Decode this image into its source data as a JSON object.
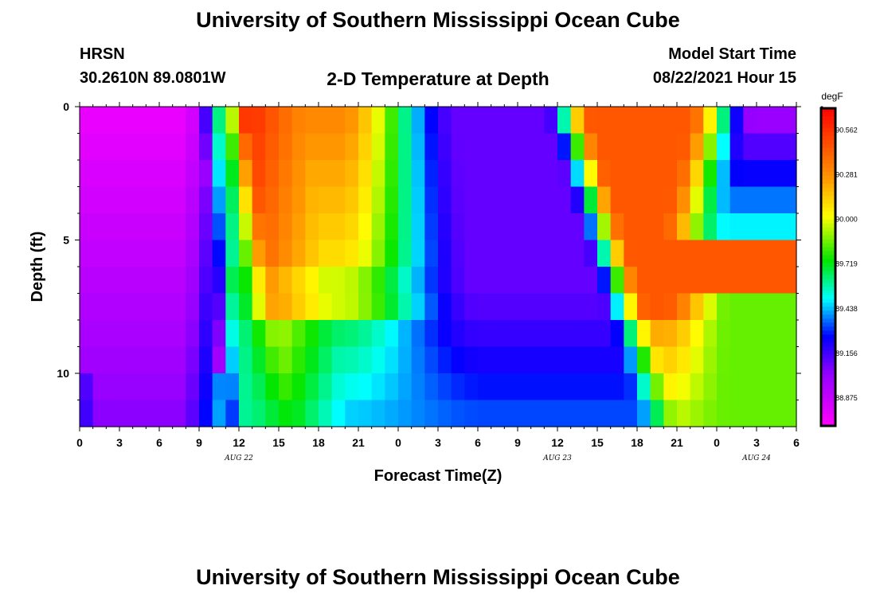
{
  "page": {
    "title_top": "University of Southern Mississippi Ocean Cube",
    "title_bottom": "University of Southern Mississippi Ocean Cube",
    "station": "HRSN",
    "coordinates": "30.2610N  89.0801W",
    "plot_title": "2-D Temperature at Depth",
    "model_label": "Model Start Time",
    "model_time": "08/22/2021 Hour 15"
  },
  "chart_data": {
    "type": "heatmap",
    "title": "2-D Temperature at Depth",
    "xlabel": "Forecast Time(Z)",
    "ylabel": "Depth (ft)",
    "units": "degF",
    "x_hours_range": [
      0,
      54
    ],
    "y_depth_range_ft": [
      0,
      12
    ],
    "x_tick_labels": [
      "0",
      "3",
      "6",
      "9",
      "12",
      "15",
      "18",
      "21",
      "0",
      "3",
      "6",
      "9",
      "12",
      "15",
      "18",
      "21",
      "0",
      "3",
      "6"
    ],
    "y_ticks": [
      0,
      5,
      10
    ],
    "y_tick_labels": [
      "0",
      "5",
      "10"
    ],
    "date_labels": [
      {
        "hour": 12,
        "label": "AUG 22"
      },
      {
        "hour": 36,
        "label": "AUG 23"
      },
      {
        "hour": 51,
        "label": "AUG 24"
      }
    ],
    "colorbar": {
      "unit_label": "degF",
      "min": 88.7,
      "max": 90.7,
      "tick_values": [
        90.562,
        90.281,
        90.0,
        89.719,
        89.438,
        89.156,
        88.875
      ],
      "tick_labels": [
        "90.562",
        "90.281",
        "90.000",
        "89.719",
        "89.438",
        "89.156",
        "88.875"
      ]
    },
    "depth_levels_ft": [
      0.5,
      1.5,
      2.5,
      3.5,
      4.5,
      5.5,
      6.5,
      7.5,
      8.5,
      9.5,
      10.5,
      11.5
    ],
    "hours": [
      0,
      1,
      2,
      3,
      4,
      5,
      6,
      7,
      8,
      9,
      10,
      11,
      12,
      13,
      14,
      15,
      16,
      17,
      18,
      19,
      20,
      21,
      22,
      23,
      24,
      25,
      26,
      27,
      28,
      29,
      30,
      31,
      32,
      33,
      34,
      35,
      36,
      37,
      38,
      39,
      40,
      41,
      42,
      43,
      44,
      45,
      46,
      47,
      48,
      49,
      50,
      51,
      52,
      53
    ],
    "features": [
      {
        "name": "cool-surface-morning",
        "hours": [
          0,
          9
        ],
        "temp_degF": 88.75
      },
      {
        "name": "warm-surface-afternoon",
        "hours": [
          11,
          14
        ],
        "peak_temp_degF": 90.6
      },
      {
        "name": "cool-blue-core",
        "hours": [
          30,
          35
        ],
        "temp_degF": 89.1
      },
      {
        "name": "warm-mid-depth-aug23",
        "hours": [
          38,
          48
        ],
        "peak_temp_degF": 90.5
      },
      {
        "name": "cool-surface-aug24",
        "hours": [
          48,
          53
        ],
        "temp_degF": 88.95
      }
    ]
  }
}
